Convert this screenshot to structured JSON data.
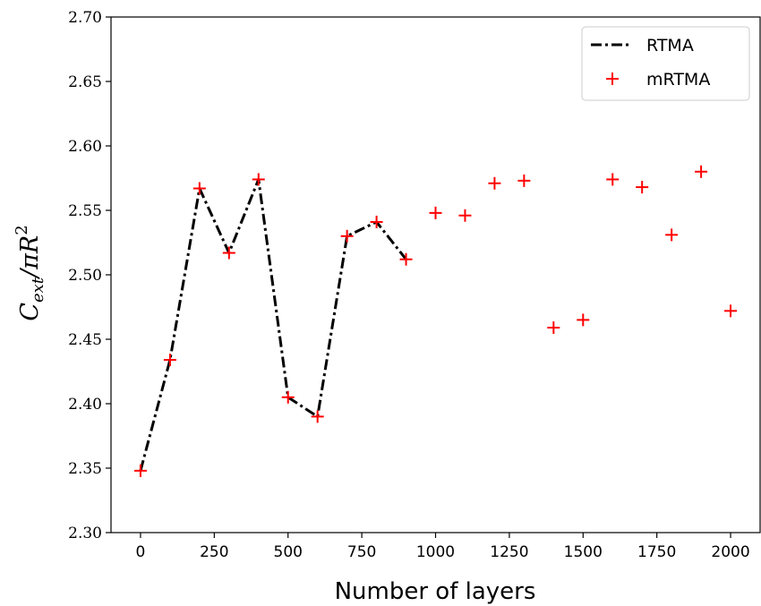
{
  "chart_data": {
    "type": "line",
    "xlabel": "Number of layers",
    "ylabel": "C_ext/πR²",
    "ylabel_parts": {
      "main": "C",
      "sub": "ext",
      "rest": "/πR",
      "sup": "2"
    },
    "xlim": [
      -100,
      2100
    ],
    "ylim": [
      2.3,
      2.7
    ],
    "x_ticks": [
      0,
      250,
      500,
      750,
      1000,
      1250,
      1500,
      1750,
      2000
    ],
    "x_tick_labels": [
      "0",
      "250",
      "500",
      "750",
      "1000",
      "1250",
      "1500",
      "1750",
      "2000"
    ],
    "y_ticks": [
      2.3,
      2.35,
      2.4,
      2.45,
      2.5,
      2.55,
      2.6,
      2.65,
      2.7
    ],
    "y_tick_labels": [
      "2.30",
      "2.35",
      "2.40",
      "2.45",
      "2.50",
      "2.55",
      "2.60",
      "2.65",
      "2.70"
    ],
    "grid": false,
    "legend_position": "top-right",
    "series": [
      {
        "name": "RTMA",
        "style": "dash-dot",
        "color": "#000000",
        "x": [
          0,
          100,
          200,
          300,
          400,
          500,
          600,
          700,
          800,
          900
        ],
        "y": [
          2.348,
          2.434,
          2.567,
          2.517,
          2.574,
          2.405,
          2.39,
          2.53,
          2.541,
          2.512
        ]
      },
      {
        "name": "mRTMA",
        "style": "plus-marker",
        "color": "#ff0000",
        "x": [
          0,
          100,
          200,
          300,
          400,
          500,
          600,
          700,
          800,
          900,
          1000,
          1100,
          1200,
          1300,
          1400,
          1500,
          1600,
          1700,
          1800,
          1900,
          2000
        ],
        "y": [
          2.348,
          2.434,
          2.567,
          2.517,
          2.574,
          2.405,
          2.39,
          2.53,
          2.541,
          2.512,
          2.548,
          2.546,
          2.571,
          2.573,
          2.459,
          2.465,
          2.574,
          2.568,
          2.531,
          2.58,
          2.472
        ]
      }
    ]
  }
}
